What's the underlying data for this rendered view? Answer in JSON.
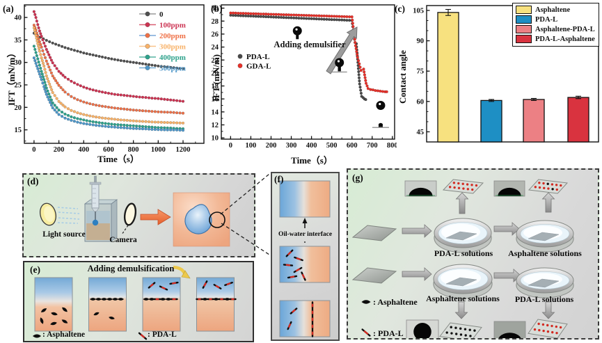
{
  "panels": {
    "a": "(a)",
    "b": "(b)",
    "c": "(c)",
    "d": "(d)",
    "e": "(e)",
    "f": "(f)",
    "g": "(g)"
  },
  "chart_data": [
    {
      "id": "a",
      "type": "scatter",
      "title": "",
      "xlabel": "Time（s）",
      "ylabel": "IFT（mN/m）",
      "xlim": [
        -78,
        1368
      ],
      "ylim": [
        12,
        42.8
      ],
      "xticks": [
        0,
        200,
        400,
        600,
        800,
        1000,
        1200
      ],
      "yticks": [
        15,
        20,
        25,
        30,
        35,
        40
      ],
      "x_minor_step": 100,
      "y_minor_step": 2.5,
      "legend_position": "top-right",
      "grid": false,
      "series": [
        {
          "name": "0",
          "marker_color": "#4f4f4f",
          "line_color": "#9a9a9a",
          "label_color": "#1a1a1a",
          "x": [
            0,
            50,
            100,
            150,
            200,
            250,
            300,
            350,
            400,
            450,
            500,
            550,
            600,
            650,
            700,
            750,
            800,
            850,
            900,
            950,
            1000,
            1050,
            1100,
            1150,
            1200
          ],
          "y": [
            36.5,
            35.6,
            34.9,
            34.3,
            33.8,
            33.3,
            32.9,
            32.5,
            32.1,
            31.8,
            31.5,
            31.2,
            30.9,
            30.65,
            30.4,
            30.2,
            30.0,
            29.8,
            29.6,
            29.4,
            29.2,
            29.05,
            28.9,
            28.75,
            28.6
          ]
        },
        {
          "name": "100ppm",
          "marker_color": "#cc3352",
          "line_color": "#d95f72",
          "label_color": "#cc3352",
          "x": [
            0,
            15,
            30,
            45,
            60,
            80,
            100,
            150,
            200,
            250,
            300,
            350,
            400,
            450,
            500,
            550,
            600,
            650,
            700,
            750,
            800,
            850,
            900,
            950,
            1000,
            1050,
            1100,
            1150,
            1200
          ],
          "y": [
            41.3,
            40.0,
            38.4,
            37.0,
            35.8,
            34.3,
            32.9,
            29.9,
            28.0,
            26.7,
            25.8,
            25.1,
            24.5,
            24.05,
            23.7,
            23.4,
            23.15,
            22.9,
            22.75,
            22.6,
            22.45,
            22.3,
            22.2,
            22.05,
            21.95,
            21.8,
            21.65,
            21.5,
            21.35
          ]
        },
        {
          "name": "200ppm",
          "marker_color": "#ef7147",
          "line_color": "#7aa7d9",
          "label_color": "#ef7147",
          "x": [
            0,
            15,
            30,
            45,
            60,
            80,
            100,
            150,
            200,
            250,
            300,
            350,
            400,
            450,
            500,
            550,
            600,
            650,
            700,
            750,
            800,
            850,
            900,
            950,
            1000,
            1050,
            1100,
            1150,
            1200
          ],
          "y": [
            38.3,
            37.2,
            35.9,
            34.6,
            33.4,
            31.8,
            30.3,
            27.0,
            24.9,
            23.4,
            22.4,
            21.7,
            21.2,
            20.8,
            20.5,
            20.25,
            20.05,
            19.85,
            19.7,
            19.55,
            19.4,
            19.3,
            19.2,
            19.1,
            19.0,
            18.95,
            18.9,
            18.8,
            18.7
          ]
        },
        {
          "name": "300ppm",
          "marker_color": "#f8b269",
          "line_color": "#f9c389",
          "label_color": "#f8b269",
          "x": [
            0,
            15,
            30,
            45,
            60,
            80,
            100,
            150,
            200,
            250,
            300,
            350,
            400,
            450,
            500,
            550,
            600,
            650,
            700,
            750,
            800,
            850,
            900,
            950,
            1000,
            1050,
            1100,
            1150,
            1200
          ],
          "y": [
            37.7,
            36.0,
            34.2,
            32.5,
            31.0,
            29.2,
            27.0,
            23.3,
            21.3,
            20.1,
            19.3,
            18.8,
            18.4,
            18.1,
            17.85,
            17.65,
            17.5,
            17.35,
            17.2,
            17.1,
            17.0,
            16.9,
            16.85,
            16.75,
            16.7,
            16.65,
            16.6,
            16.55,
            16.5
          ]
        },
        {
          "name": "400ppm",
          "marker_color": "#2fa28c",
          "line_color": "#55b3a0",
          "label_color": "#2fa28c",
          "x": [
            0,
            15,
            30,
            45,
            60,
            80,
            100,
            150,
            200,
            250,
            300,
            350,
            400,
            450,
            500,
            550,
            600,
            650,
            700,
            750,
            800,
            850,
            900,
            950,
            1000,
            1050,
            1100,
            1150,
            1200
          ],
          "y": [
            33.6,
            32.2,
            30.8,
            29.4,
            28.0,
            26.2,
            24.3,
            21.0,
            19.4,
            18.5,
            17.9,
            17.5,
            17.2,
            16.9,
            16.7,
            16.5,
            16.35,
            16.2,
            16.1,
            16.0,
            15.9,
            15.8,
            15.7,
            15.6,
            15.5,
            15.45,
            15.4,
            15.3,
            15.25
          ]
        },
        {
          "name": "500ppm",
          "marker_color": "#4e97c9",
          "line_color": "#74abd6",
          "label_color": "#4e97c9",
          "x": [
            0,
            15,
            30,
            45,
            60,
            80,
            100,
            150,
            200,
            250,
            300,
            350,
            400,
            450,
            500,
            550,
            600,
            650,
            700,
            750,
            800,
            850,
            900,
            950,
            1000,
            1050,
            1100,
            1150,
            1200
          ],
          "y": [
            31.0,
            29.8,
            28.6,
            27.4,
            26.2,
            24.6,
            22.9,
            19.9,
            18.4,
            17.6,
            17.1,
            16.7,
            16.4,
            16.2,
            16.0,
            15.85,
            15.7,
            15.6,
            15.5,
            15.4,
            15.3,
            15.25,
            15.2,
            15.1,
            15.05,
            15.0,
            14.98,
            14.95,
            14.9
          ]
        }
      ]
    },
    {
      "id": "b",
      "type": "scatter",
      "title": "",
      "xlabel": "Time（s）",
      "ylabel": "IFT (mN/m)",
      "xlim": [
        -46,
        811
      ],
      "ylim": [
        9.8,
        30.5
      ],
      "xticks": [
        0,
        100,
        200,
        300,
        400,
        500,
        600,
        700,
        800
      ],
      "yticks": [
        10,
        12,
        14,
        16,
        18,
        20,
        22,
        24,
        26,
        28,
        30
      ],
      "x_minor_step": 50,
      "y_minor_step": 1,
      "annotation": "Adding demulsifier",
      "drop_icons": [
        {
          "x": 330,
          "y": 26.5,
          "style": "hanging"
        },
        {
          "x": 538,
          "y": 21.6,
          "style": "baseline"
        },
        {
          "x": 742,
          "y": 15.0,
          "style": "detached",
          "ground_y": 11.6
        }
      ],
      "series": [
        {
          "name": "PDA-L",
          "marker_color": "#4a4a4a",
          "line_color": "#8a8a8a",
          "label_color": "#0a0a0a",
          "x": [
            0,
            25,
            50,
            75,
            100,
            125,
            150,
            175,
            200,
            225,
            250,
            275,
            300,
            325,
            350,
            375,
            400,
            425,
            450,
            475,
            500,
            525,
            550,
            575,
            600,
            615,
            622,
            638,
            648,
            655,
            662,
            668
          ],
          "y": [
            28.9,
            28.87,
            28.83,
            28.8,
            28.77,
            28.73,
            28.7,
            28.67,
            28.63,
            28.6,
            28.57,
            28.53,
            28.5,
            28.47,
            28.43,
            28.4,
            28.37,
            28.33,
            28.3,
            28.27,
            28.23,
            28.2,
            28.17,
            28.13,
            28.1,
            24.7,
            24.5,
            18.3,
            16.4,
            16.2,
            16.0,
            15.9
          ]
        },
        {
          "name": "GDA-L",
          "marker_color": "#e8312a",
          "line_color": "#ef6a60",
          "label_color": "#0a0a0a",
          "x": [
            0,
            25,
            50,
            75,
            100,
            125,
            150,
            175,
            200,
            225,
            250,
            275,
            300,
            325,
            350,
            375,
            400,
            425,
            450,
            475,
            500,
            525,
            550,
            575,
            600,
            618,
            628,
            645,
            658,
            670,
            680,
            692,
            704,
            716,
            728,
            740,
            752,
            764,
            772
          ],
          "y": [
            29.25,
            29.23,
            29.2,
            29.18,
            29.15,
            29.13,
            29.1,
            29.08,
            29.05,
            29.03,
            29.0,
            28.98,
            28.95,
            28.93,
            28.9,
            28.88,
            28.85,
            28.83,
            28.8,
            28.78,
            28.75,
            28.73,
            28.7,
            28.68,
            28.65,
            24.2,
            22.4,
            20.4,
            20.6,
            18.4,
            17.6,
            17.45,
            17.4,
            17.3,
            17.25,
            17.2,
            17.15,
            17.1,
            17.1
          ]
        }
      ]
    },
    {
      "id": "c",
      "type": "bar",
      "title": "",
      "xlabel": "",
      "ylabel": "Contact angle",
      "categories": [
        "Asphaltene",
        "PDA-L",
        "Asphaltene-PDA-L",
        "PDA-L-Asphaltene"
      ],
      "values": [
        104,
        60.5,
        61,
        62
      ],
      "errors": [
        1.5,
        0.5,
        0.5,
        0.6
      ],
      "colors": [
        "#f7e17f",
        "#1e8fc4",
        "#ec8084",
        "#d9333f"
      ],
      "edge_color": "#111111",
      "ylim": [
        40,
        107.4
      ],
      "yticks": [
        45,
        60,
        75,
        90,
        105
      ],
      "y_minor_step": 5,
      "legend": [
        "Asphaltene",
        "PDA-L",
        "Asphaltene-PDA-L",
        "PDA-L-Asphaltene"
      ],
      "legend_position": "top-right",
      "grid": false
    }
  ],
  "panel_d": {
    "light_source": "Light source",
    "camera": "Camera"
  },
  "panel_e": {
    "title": "Adding demulsification",
    "asphaltene_label": ": Asphaltene",
    "pdal_label": ": PDA-L"
  },
  "panel_f": {
    "interface_label": "Oil-water interface"
  },
  "panel_g": {
    "dish1": "PDA-L solutions",
    "dish2": "Asphaltene solutions",
    "dish3": "Asphaltene solutions",
    "dish4": "PDA-L solutions",
    "asphaltene_label": ": Asphaltene",
    "pdal_label": ": PDA-L"
  },
  "icons": {
    "asphaltene-icon": "black-lens-particle",
    "pda-l-icon": "red-black-needle",
    "drop-icon": "pendant-drop",
    "accent_orange": "#ed6a3c",
    "accent_red": "#d22b22",
    "water_blue": "#5f9bd4",
    "oil_orange": "#eda57f"
  }
}
